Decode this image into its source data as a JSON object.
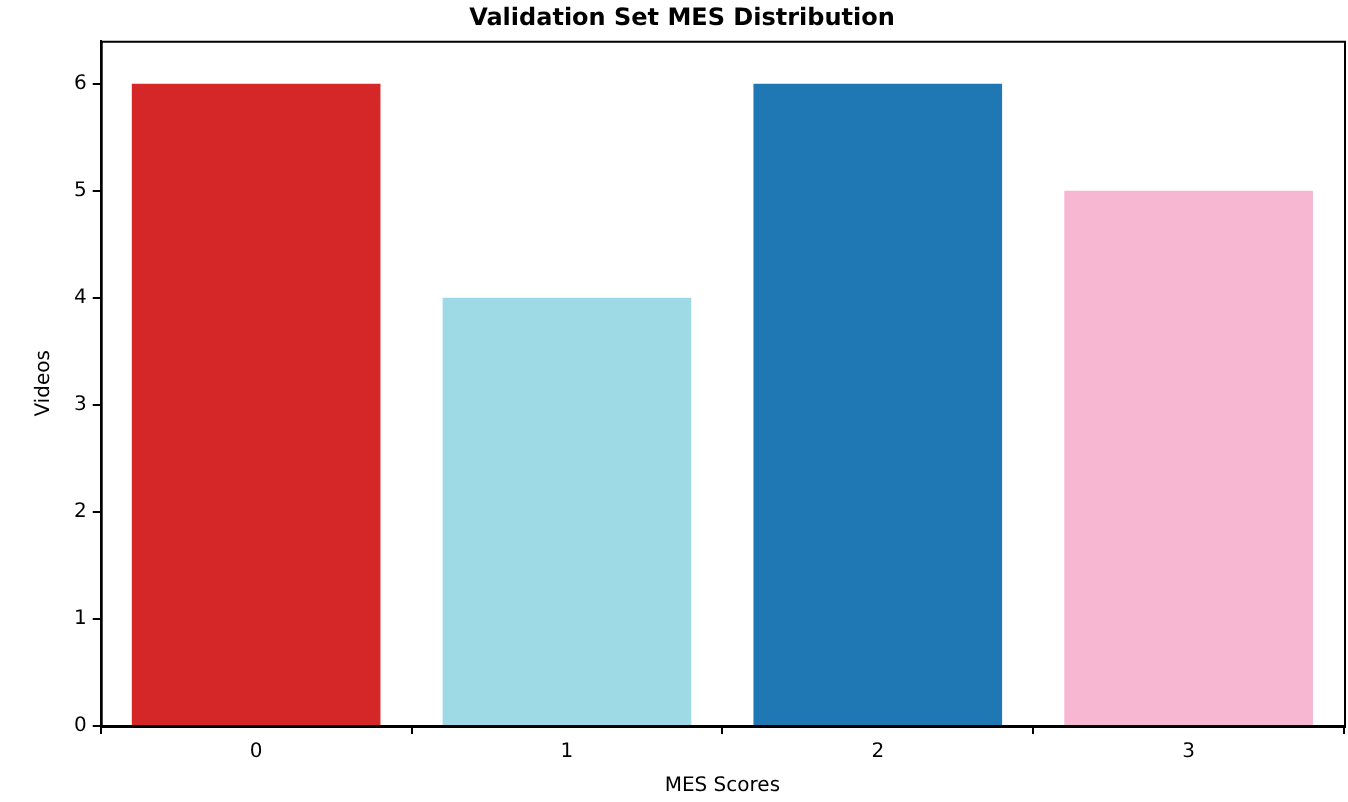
{
  "chart_data": {
    "type": "bar",
    "title": "Validation Set MES Distribution",
    "xlabel": "MES Scores",
    "ylabel": "Videos",
    "categories": [
      "0",
      "1",
      "2",
      "3"
    ],
    "values": [
      6,
      4,
      6,
      5
    ],
    "colors": [
      "#d62728",
      "#9edae5",
      "#1f77b4",
      "#f7b6d2"
    ],
    "ylim": [
      0,
      6.4
    ],
    "yticks": [
      0,
      1,
      2,
      3,
      4,
      5,
      6
    ],
    "grid": false,
    "legend": false
  }
}
